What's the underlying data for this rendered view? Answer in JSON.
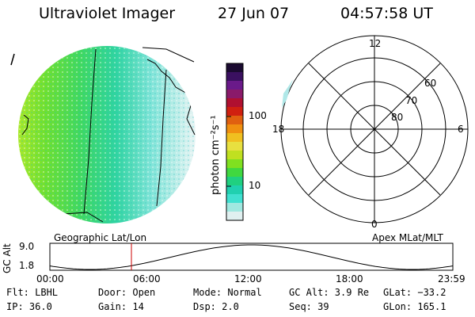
{
  "header": {
    "title": "Ultraviolet Imager",
    "date": "27 Jun 07",
    "time": "04:57:58 UT"
  },
  "colorbar": {
    "unit_label": "photon cm⁻²s⁻¹",
    "ticks": [
      "100",
      "10"
    ],
    "colors": [
      "#1a0a30",
      "#3a1060",
      "#6a1a8a",
      "#8a1a6a",
      "#b01030",
      "#d02010",
      "#e06010",
      "#f09010",
      "#f0c020",
      "#e8e040",
      "#c0e020",
      "#80e020",
      "#40d840",
      "#20d080",
      "#20d0b0",
      "#40e0d0",
      "#a0e8e0",
      "#e0f0f0"
    ]
  },
  "polar": {
    "labels": {
      "top": "12",
      "bottom": "0",
      "left": "18",
      "right": "6",
      "r60": "60",
      "r70": "70",
      "r80": "80"
    }
  },
  "timeline": {
    "left_caption": "Geographic Lat/Lon",
    "right_caption": "Apex MLat/MLT",
    "axis_title": "GC Alt",
    "y_ticks": [
      "9.0",
      "1.8"
    ],
    "x_ticks": [
      "00:00",
      "06:00",
      "12:00",
      "18:00",
      "23:59"
    ]
  },
  "status": {
    "flt": "Flt: LBHL",
    "ip": "IP: 36.0",
    "door": "Door: Open",
    "gain": "Gain: 14",
    "mode": "Mode: Normal",
    "dsp": "Dsp:    2.0",
    "gcalt": "GC Alt: 3.9 Re",
    "seq": "Seq: 39",
    "glat": "GLat: −33.2",
    "glon": "GLon: 165.1"
  }
}
